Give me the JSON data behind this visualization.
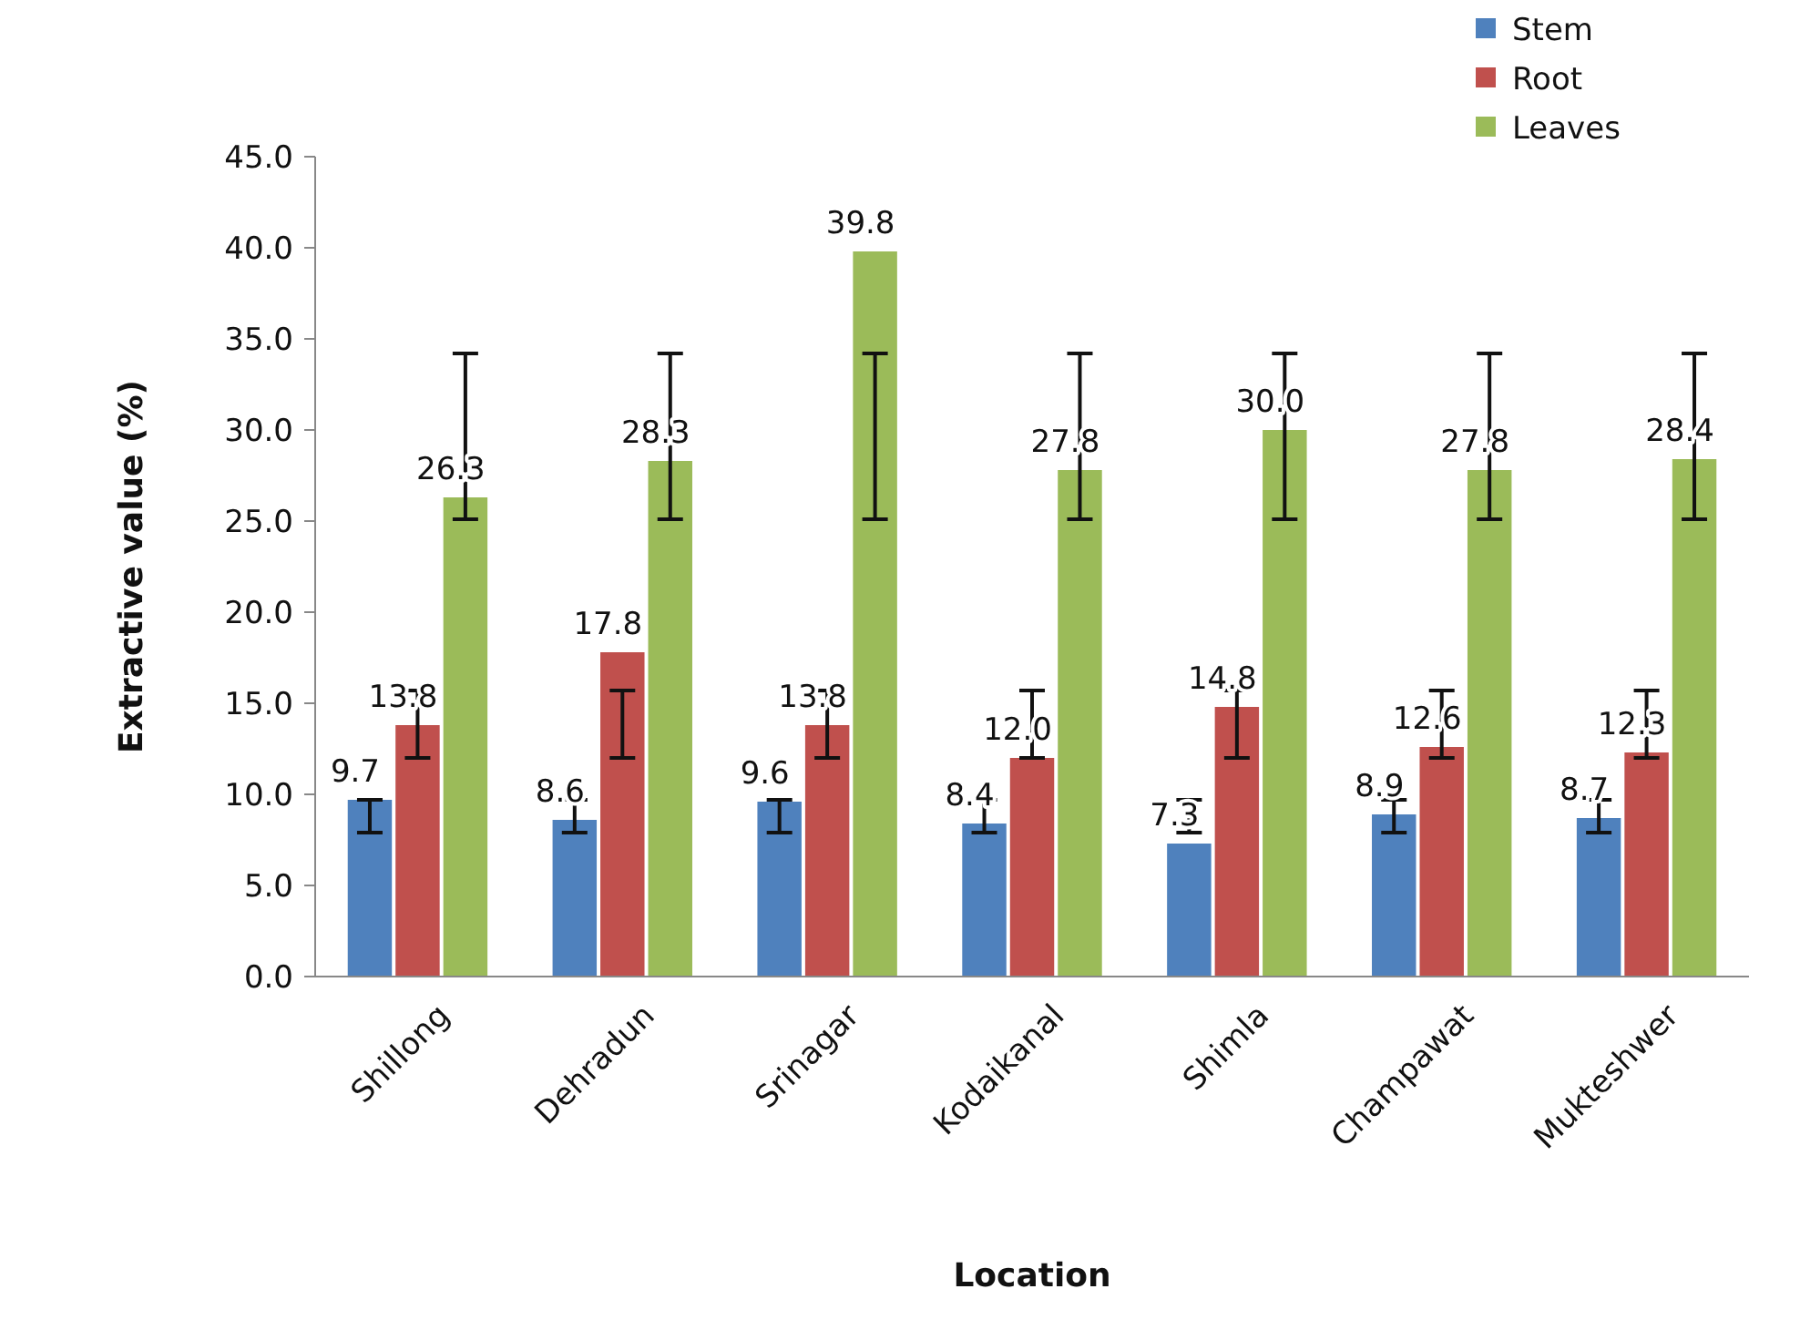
{
  "chart_data": {
    "type": "bar",
    "xlabel": "Location",
    "ylabel": "Extractive value (%)",
    "categories": [
      "Shillong",
      "Dehradun",
      "Srinagar",
      "Kodaikanal",
      "Shimla",
      "Champawat",
      "Mukteshwer"
    ],
    "series": [
      {
        "name": "Stem",
        "color": "#4f81bd",
        "values": [
          9.7,
          8.6,
          9.6,
          8.4,
          7.3,
          8.9,
          8.7
        ],
        "value_labels": [
          "9.7",
          "8.6",
          "9.6",
          "8.4",
          "7.3",
          "8.9",
          "8.7"
        ],
        "errors": [
          [
            7.9,
            9.7
          ],
          [
            7.9,
            9.7
          ],
          [
            7.9,
            9.7
          ],
          [
            7.9,
            9.7
          ],
          [
            7.9,
            9.7
          ],
          [
            7.9,
            9.7
          ],
          [
            7.9,
            9.7
          ]
        ]
      },
      {
        "name": "Root",
        "color": "#c0504d",
        "values": [
          13.8,
          17.8,
          13.8,
          12.0,
          14.8,
          12.6,
          12.3
        ],
        "value_labels": [
          "13.8",
          "17.8",
          "13.8",
          "12.0",
          "14.8",
          "12.6",
          "12.3"
        ],
        "errors": [
          [
            12.0,
            15.7
          ],
          [
            12.0,
            15.7
          ],
          [
            12.0,
            15.7
          ],
          [
            12.0,
            15.7
          ],
          [
            12.0,
            15.7
          ],
          [
            12.0,
            15.7
          ],
          [
            12.0,
            15.7
          ]
        ]
      },
      {
        "name": "Leaves",
        "color": "#9bbb59",
        "values": [
          26.3,
          28.3,
          39.8,
          27.8,
          30.0,
          27.8,
          28.4
        ],
        "value_labels": [
          "26.3",
          "28.3",
          "39.8",
          "27.8",
          "30.0",
          "27.8",
          "28.4"
        ],
        "errors": [
          [
            25.1,
            34.2
          ],
          [
            25.1,
            34.2
          ],
          [
            25.1,
            34.2
          ],
          [
            25.1,
            34.2
          ],
          [
            25.1,
            34.2
          ],
          [
            25.1,
            34.2
          ],
          [
            25.1,
            34.2
          ]
        ]
      }
    ],
    "ylim": [
      0,
      45
    ],
    "yticks": [
      {
        "value": 0,
        "label": "0.0"
      },
      {
        "value": 5,
        "label": "5.0"
      },
      {
        "value": 10,
        "label": "10.0"
      },
      {
        "value": 15,
        "label": "15.0"
      },
      {
        "value": 20,
        "label": "20.0"
      },
      {
        "value": 25,
        "label": "25.0"
      },
      {
        "value": 30,
        "label": "30.0"
      },
      {
        "value": 35,
        "label": "35.0"
      },
      {
        "value": 40,
        "label": "40.0"
      },
      {
        "value": 45,
        "label": "45.0"
      }
    ],
    "grid": false,
    "legend": "top right"
  }
}
